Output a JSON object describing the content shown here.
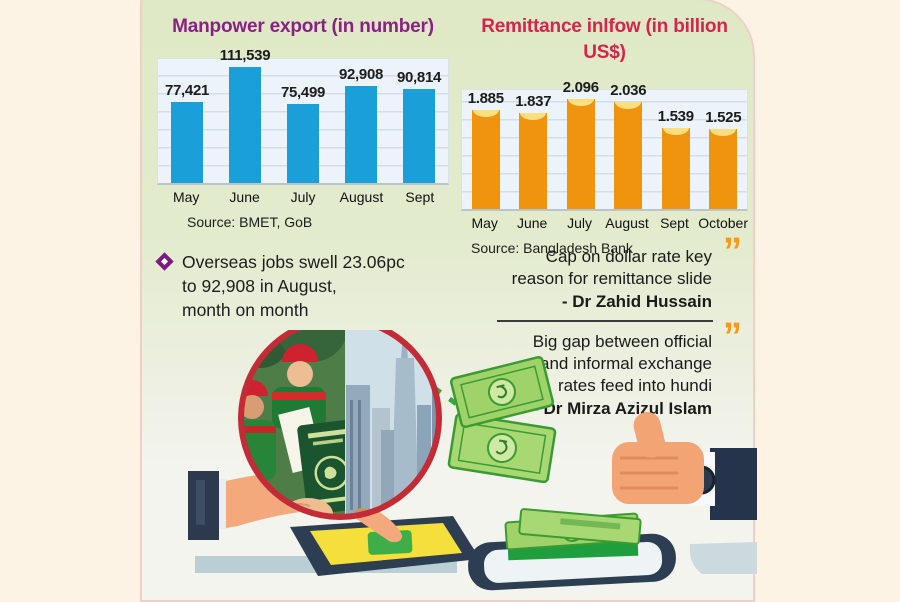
{
  "page": {
    "background": "#fdf3e5",
    "panel_color": "#e1ebcb",
    "panel_edge_color": "#f1cfc5"
  },
  "chart_data": [
    {
      "type": "bar",
      "title": "Manpower export (in number)",
      "title_color": "#8b2083",
      "categories": [
        "May",
        "June",
        "July",
        "August",
        "Sept"
      ],
      "values": [
        77421,
        111539,
        75499,
        92908,
        90814
      ],
      "value_labels": [
        "77,421",
        "111,539",
        "75,499",
        "92,908",
        "90,814"
      ],
      "source": "Source: BMET, GoB",
      "bar_color": "#1a9fd9",
      "ylim": [
        0,
        115000
      ],
      "grid": true,
      "legend": false,
      "xlabel": "",
      "ylabel": ""
    },
    {
      "type": "bar",
      "title": "Remittance inlfow (in billion US$)",
      "title_color": "#d9234a",
      "categories": [
        "May",
        "June",
        "July",
        "August",
        "Sept",
        "October"
      ],
      "values": [
        1.885,
        1.837,
        2.096,
        2.036,
        1.539,
        1.525
      ],
      "value_labels": [
        "1.885",
        "1.837",
        "2.096",
        "2.036",
        "1.539",
        "1.525"
      ],
      "source": "Source: Bangladesh Bank",
      "bar_color": "#f0930e",
      "bar_cap_color": "#fbdf7e",
      "ylim": [
        0,
        2.2
      ],
      "grid": true,
      "legend": false,
      "xlabel": "",
      "ylabel": ""
    }
  ],
  "highlight": {
    "bullet_color": "#7a1b7e",
    "lines": [
      "Overseas jobs swell 23.06pc",
      "to 92,908 in August,",
      "month on month"
    ]
  },
  "quotes": [
    {
      "lines": [
        "Cap on dollar rate key",
        "reason for remittance slide"
      ],
      "author": "- Dr Zahid Hussain",
      "icon": "double-quote-icon",
      "icon_color": "#f29a1b"
    },
    {
      "lines": [
        "Big gap between official",
        "and informal exchange",
        "rates feed into hundi"
      ],
      "author": "- Dr Mirza Azizul Islam",
      "icon": "double-quote-icon",
      "icon_color": "#f29a1b"
    }
  ],
  "illustration": {
    "icons": [
      "workers-passport-city-photo",
      "dashed-transfer-line-icon",
      "pointing-hand-tablet-icon",
      "flying-banknotes-icon",
      "phone-money-stack-icon",
      "thumbs-up-hand-icon"
    ]
  }
}
